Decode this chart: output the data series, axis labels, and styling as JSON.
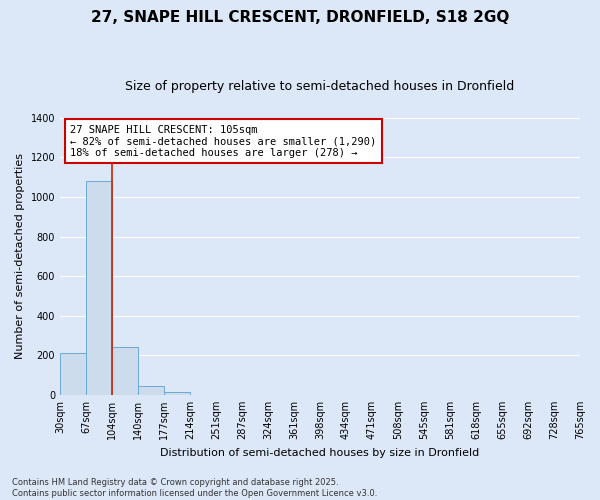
{
  "title1": "27, SNAPE HILL CRESCENT, DRONFIELD, S18 2GQ",
  "title2": "Size of property relative to semi-detached houses in Dronfield",
  "xlabel": "Distribution of semi-detached houses by size in Dronfield",
  "ylabel": "Number of semi-detached properties",
  "footer1": "Contains HM Land Registry data © Crown copyright and database right 2025.",
  "footer2": "Contains public sector information licensed under the Open Government Licence v3.0.",
  "annotation_line1": "27 SNAPE HILL CRESCENT: 105sqm",
  "annotation_line2": "← 82% of semi-detached houses are smaller (1,290)",
  "annotation_line3": "18% of semi-detached houses are larger (278) →",
  "property_size": 105,
  "bar_edges": [
    30,
    67,
    104,
    140,
    177,
    214,
    251,
    287,
    324,
    361,
    398,
    434,
    471,
    508,
    545,
    581,
    618,
    655,
    692,
    728,
    765
  ],
  "bar_heights": [
    210,
    1080,
    240,
    45,
    15,
    0,
    0,
    0,
    0,
    0,
    0,
    0,
    0,
    0,
    0,
    0,
    0,
    0,
    0,
    0
  ],
  "bar_color": "#ccdcec",
  "bar_edge_color": "#6aaad4",
  "red_line_x": 104,
  "ylim": [
    0,
    1400
  ],
  "yticks": [
    0,
    200,
    400,
    600,
    800,
    1000,
    1200,
    1400
  ],
  "background_color": "#dce8f8",
  "grid_color": "#ffffff",
  "annotation_box_color": "#ffffff",
  "annotation_box_edge": "#cc0000",
  "red_line_color": "#cc2200",
  "title1_fontsize": 11,
  "title2_fontsize": 9,
  "xlabel_fontsize": 8,
  "ylabel_fontsize": 8,
  "tick_fontsize": 7,
  "footer_fontsize": 6,
  "annot_fontsize": 7.5
}
